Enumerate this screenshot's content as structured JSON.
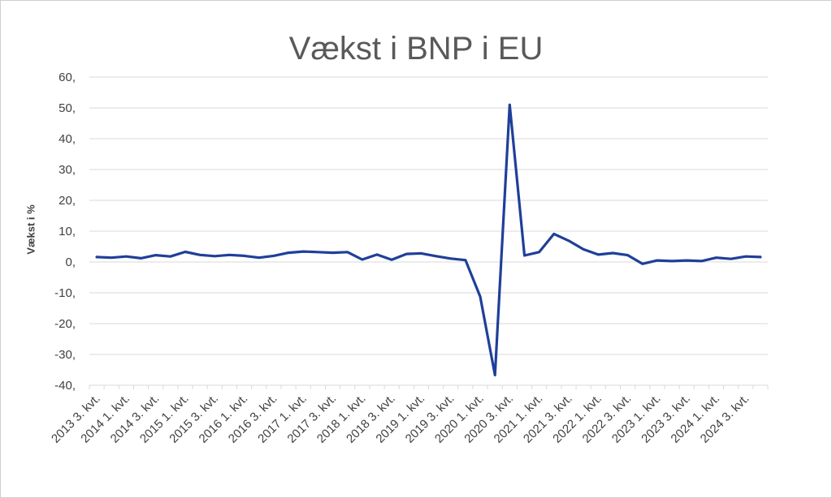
{
  "chart_data": {
    "type": "line",
    "title": "Vækst i BNP i EU",
    "ylabel": "Vækst i %",
    "ylim": [
      -40,
      60
    ],
    "yticks": [
      "60,",
      "50,",
      "40,",
      "30,",
      "20,",
      "10,",
      "0,",
      "-10,",
      "-20,",
      "-30,",
      "-40,"
    ],
    "grid": true,
    "color": "#1f3f99",
    "x": [
      "2013 3. kvt.",
      "2013 4. kvt.",
      "2014 1. kvt.",
      "2014 2. kvt.",
      "2014 3. kvt.",
      "2014 4. kvt.",
      "2015 1. kvt.",
      "2015 2. kvt.",
      "2015 3. kvt.",
      "2015 4. kvt.",
      "2016 1. kvt.",
      "2016 2. kvt.",
      "2016 3. kvt.",
      "2016 4. kvt.",
      "2017 1. kvt.",
      "2017 2. kvt.",
      "2017 3. kvt.",
      "2017 4. kvt.",
      "2018 1. kvt.",
      "2018 2. kvt.",
      "2018 3. kvt.",
      "2018 4. kvt.",
      "2019 1. kvt.",
      "2019 2. kvt.",
      "2019 3. kvt.",
      "2019 4. kvt.",
      "2020 1. kvt.",
      "2020 2. kvt.",
      "2020 3. kvt.",
      "2020 4. kvt.",
      "2021 1. kvt.",
      "2021 2. kvt.",
      "2021 3. kvt.",
      "2021 4. kvt.",
      "2022 1. kvt.",
      "2022 2. kvt.",
      "2022 3. kvt.",
      "2022 4. kvt.",
      "2023 1. kvt.",
      "2023 2. kvt.",
      "2023 3. kvt.",
      "2023 4. kvt.",
      "2024 1. kvt.",
      "2024 2. kvt.",
      "2024 3. kvt.",
      "2024 4. kvt."
    ],
    "xtick_labels": [
      "2013 3. kvt.",
      "2014 1. kvt.",
      "2014 3. kvt.",
      "2015 1. kvt.",
      "2015 3. kvt.",
      "2016 1. kvt.",
      "2016 3. kvt.",
      "2017 1. kvt.",
      "2017 3. kvt.",
      "2018 1. kvt.",
      "2018 3. kvt.",
      "2019 1. kvt.",
      "2019 3. kvt.",
      "2020 1. kvt.",
      "2020 3. kvt.",
      "2021 1. kvt.",
      "2021 3. kvt.",
      "2022 1. kvt.",
      "2022 3. kvt.",
      "2023 1. kvt.",
      "2023 3. kvt.",
      "2024 1. kvt.",
      "2024 3. kvt."
    ],
    "series": [
      {
        "values": [
          1.6,
          1.4,
          1.8,
          1.2,
          2.2,
          1.8,
          3.3,
          2.3,
          1.9,
          2.3,
          2.0,
          1.4,
          2.0,
          3.0,
          3.4,
          3.2,
          3.0,
          3.2,
          0.8,
          2.4,
          0.7,
          2.6,
          2.8,
          1.9,
          1.1,
          0.6,
          -11.2,
          -36.7,
          51.0,
          2.1,
          3.2,
          9.1,
          6.9,
          4.1,
          2.4,
          2.9,
          2.2,
          -0.6,
          0.5,
          0.3,
          0.5,
          0.3,
          1.4,
          1.0,
          1.8,
          1.6
        ]
      }
    ]
  }
}
